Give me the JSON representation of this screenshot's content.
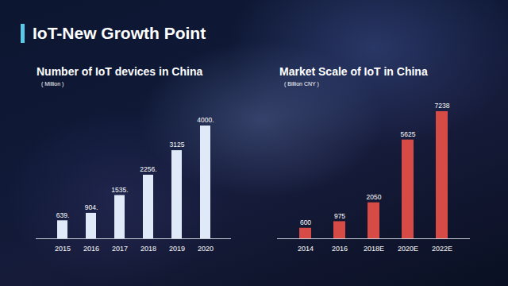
{
  "title": "IoT-New Growth Point",
  "chart_data": [
    {
      "type": "bar",
      "title": "Number of IoT devices in China",
      "subtitle": "( Million )",
      "categories": [
        "2015",
        "2016",
        "2017",
        "2018",
        "2019",
        "2020"
      ],
      "values": [
        639,
        904,
        1535,
        2256,
        3125,
        4000
      ],
      "value_labels": [
        "639.",
        "904.",
        "1535.",
        "2256.",
        "3125",
        "4000."
      ],
      "color": "#dfe9f7",
      "ylim": [
        0,
        4000
      ],
      "data_labels": true,
      "tick_labels": "x",
      "grid": false
    },
    {
      "type": "bar",
      "title": "Market Scale of IoT in China",
      "subtitle": "( Billion CNY )",
      "categories": [
        "2014",
        "2016",
        "2018E",
        "2020E",
        "2022E"
      ],
      "values": [
        600,
        975,
        2050,
        5625,
        7238
      ],
      "color": "#d64b46",
      "ylim": [
        0,
        7238
      ],
      "data_labels": true,
      "tick_labels": "x",
      "grid": false
    }
  ]
}
